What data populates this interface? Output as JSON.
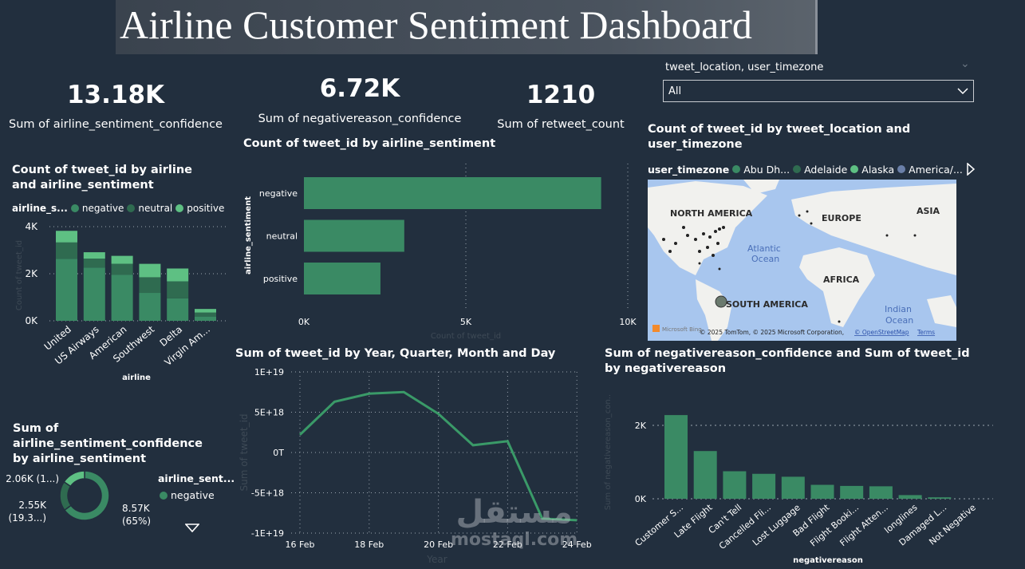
{
  "title": "Airline Customer Sentiment Dashboard",
  "kpis": [
    {
      "value": "13.18K",
      "label": "Sum of airline_sentiment_confidence"
    },
    {
      "value": "6.72K",
      "label": "Sum of negativereason_confidence"
    },
    {
      "value": "1210",
      "label": "Sum of retweet_count"
    }
  ],
  "slicer": {
    "label": "tweet_location, user_timezone",
    "value": "All"
  },
  "colors": {
    "negative": "#3a8a64",
    "neutral": "#2f6b50",
    "positive": "#5ec083",
    "background": "#222f3e",
    "line": "#3a9a68"
  },
  "watermark": {
    "arabic": "مستقل",
    "latin": "mostaql.com"
  },
  "chart_data": [
    {
      "id": "stacked",
      "type": "bar",
      "stacked": true,
      "title": "Count of tweet_id by airline and airline_sentiment",
      "legend_title": "airline_s...",
      "xlabel": "airline",
      "ylabel": "Count of tweet_id",
      "ylim": [
        0,
        4000
      ],
      "yticks": [
        "0K",
        "2K",
        "4K"
      ],
      "grid": true,
      "categories": [
        "United",
        "US Airways",
        "American",
        "Southwest",
        "Delta",
        "Virgin Am..."
      ],
      "series": [
        {
          "name": "negative",
          "values": [
            2633,
            2263,
            1960,
            1186,
            955,
            181
          ]
        },
        {
          "name": "neutral",
          "values": [
            697,
            381,
            463,
            664,
            723,
            171
          ]
        },
        {
          "name": "positive",
          "values": [
            492,
            269,
            336,
            570,
            544,
            152
          ]
        }
      ]
    },
    {
      "id": "hbar",
      "type": "bar",
      "orientation": "horizontal",
      "title": "Count of tweet_id by airline_sentiment",
      "xlabel": "Count of tweet_id",
      "ylabel": "airline_sentiment",
      "xlim": [
        0,
        10000
      ],
      "xticks": [
        "0K",
        "5K",
        "10K"
      ],
      "categories": [
        "negative",
        "neutral",
        "positive"
      ],
      "values": [
        9178,
        3099,
        2363
      ]
    },
    {
      "id": "donut",
      "type": "pie",
      "donut": true,
      "title": "Sum of airline_sentiment_confidence by airline_sentiment",
      "legend_title": "airline_sent...",
      "legend": [
        "negative"
      ],
      "slices": [
        {
          "name": "negative",
          "value": 8570,
          "label": "8.57K",
          "pct": "(65%)"
        },
        {
          "name": "neutral",
          "value": 2550,
          "label": "2.55K",
          "pct": "(19.3...)"
        },
        {
          "name": "positive",
          "value": 2060,
          "label": "2.06K (1...)",
          "pct": ""
        }
      ]
    },
    {
      "id": "line",
      "type": "line",
      "title": "Sum of tweet_id by Year, Quarter, Month and Day",
      "xlabel": "Year",
      "ylabel": "Sum of tweet_id",
      "ylim": [
        -1e+19,
        1e+19
      ],
      "yticks": [
        "1E+19",
        "5E+18",
        "0T",
        "-5E+18",
        "-1E+19"
      ],
      "xticks": [
        "16 Feb",
        "18 Feb",
        "20 Feb",
        "22 Feb",
        "24 Feb"
      ],
      "grid": true,
      "x": [
        "16 Feb",
        "17 Feb",
        "18 Feb",
        "19 Feb",
        "20 Feb",
        "21 Feb",
        "22 Feb",
        "23 Feb",
        "24 Feb"
      ],
      "values": [
        2.2e+18,
        6.3e+18,
        7.3e+18,
        7.5e+18,
        4.8e+18,
        9e+17,
        1.4e+18,
        -8.2e+18,
        -8.4e+18
      ]
    },
    {
      "id": "negreason",
      "type": "bar",
      "title": "Sum of negativereason_confidence and Sum of tweet_id by negativereason",
      "xlabel": "negativereason",
      "ylabel": "Sum of negativereason_con...",
      "ylim": [
        0,
        2400
      ],
      "yticks": [
        "0K",
        "2K"
      ],
      "grid": true,
      "categories": [
        "Customer S...",
        "Late Flight",
        "Can't Tell",
        "Cancelled Fli...",
        "Lost Luggage",
        "Bad Flight",
        "Flight Booki...",
        "Flight Atten...",
        "longlines",
        "Damaged L...",
        "Not Negative"
      ],
      "values": [
        2280,
        1300,
        750,
        680,
        600,
        380,
        350,
        340,
        100,
        40,
        0
      ]
    }
  ],
  "map": {
    "title": "Count of tweet_id by tweet_location and user_timezone",
    "legend_title": "user_timezone",
    "legend": [
      "Abu Dh...",
      "Adelaide",
      "Alaska",
      "America/..."
    ],
    "labels": [
      "NORTH AMERICA",
      "EUROPE",
      "ASIA",
      "Atlantic",
      "Ocean",
      "AFRICA",
      "SOUTH AMERICA",
      "Indian",
      "Ocean"
    ],
    "logo": "Microsoft Bing",
    "attribution": "© 2025 TomTom, © 2025 Microsoft Corporation,",
    "osm": "© OpenStreetMap",
    "terms": "Terms"
  }
}
